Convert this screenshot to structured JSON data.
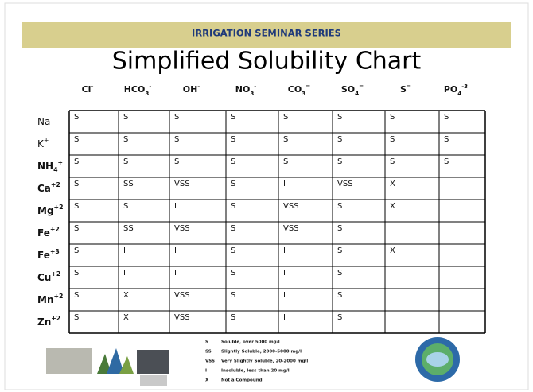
{
  "header": {
    "series": "IRRIGATION SEMINAR SERIES",
    "title": "Simplified Solubility Chart"
  },
  "table": {
    "columns": [
      [
        {
          "t": "Cl"
        },
        {
          "t": "-",
          "sup": true
        }
      ],
      [
        {
          "t": "HCO"
        },
        {
          "t": "3",
          "sub": true
        },
        {
          "t": "-",
          "sup": true
        }
      ],
      [
        {
          "t": "OH"
        },
        {
          "t": "-",
          "sup": true
        }
      ],
      [
        {
          "t": "NO"
        },
        {
          "t": "3",
          "sub": true
        },
        {
          "t": "-",
          "sup": true
        }
      ],
      [
        {
          "t": "CO"
        },
        {
          "t": "3",
          "sub": true
        },
        {
          "t": "=",
          "sup": true
        }
      ],
      [
        {
          "t": "SO"
        },
        {
          "t": "4",
          "sub": true
        },
        {
          "t": "=",
          "sup": true
        }
      ],
      [
        {
          "t": "S"
        },
        {
          "t": "=",
          "sup": true
        }
      ],
      [
        {
          "t": "PO"
        },
        {
          "t": "4",
          "sub": true
        },
        {
          "t": "-3",
          "sup": true
        }
      ]
    ],
    "row_labels": [
      [
        {
          "t": "Na"
        },
        {
          "t": "+",
          "sup": true
        }
      ],
      [
        {
          "t": "K"
        },
        {
          "t": "+",
          "sup": true
        }
      ],
      [
        {
          "t": "NH"
        },
        {
          "t": "4",
          "sub": true
        },
        {
          "t": "+",
          "sup": true
        }
      ],
      [
        {
          "t": "Ca"
        },
        {
          "t": "+2",
          "sup": true
        }
      ],
      [
        {
          "t": "Mg"
        },
        {
          "t": "+2",
          "sup": true
        }
      ],
      [
        {
          "t": "Fe"
        },
        {
          "t": "+2",
          "sup": true
        }
      ],
      [
        {
          "t": "Fe"
        },
        {
          "t": "+3",
          "sup": true
        }
      ],
      [
        {
          "t": "Cu"
        },
        {
          "t": "+2",
          "sup": true
        }
      ],
      [
        {
          "t": "Mn"
        },
        {
          "t": "+2",
          "sup": true
        }
      ],
      [
        {
          "t": "Zn"
        },
        {
          "t": "+2",
          "sup": true
        }
      ]
    ],
    "rows": [
      [
        "S",
        "S",
        "S",
        "S",
        "S",
        "S",
        "S",
        "S"
      ],
      [
        "S",
        "S",
        "S",
        "S",
        "S",
        "S",
        "S",
        "S"
      ],
      [
        "S",
        "S",
        "S",
        "S",
        "S",
        "S",
        "S",
        "S"
      ],
      [
        "S",
        "SS",
        "VSS",
        "S",
        "I",
        "VSS",
        "X",
        "I"
      ],
      [
        "S",
        "S",
        "I",
        "S",
        "VSS",
        "S",
        "X",
        "I"
      ],
      [
        "S",
        "SS",
        "VSS",
        "S",
        "VSS",
        "S",
        "I",
        "I"
      ],
      [
        "S",
        "I",
        "I",
        "S",
        "I",
        "S",
        "X",
        "I"
      ],
      [
        "S",
        "I",
        "I",
        "S",
        "I",
        "S",
        "I",
        "I"
      ],
      [
        "S",
        "X",
        "VSS",
        "S",
        "I",
        "S",
        "I",
        "I"
      ],
      [
        "S",
        "X",
        "VSS",
        "S",
        "I",
        "S",
        "I",
        "I"
      ]
    ]
  },
  "legend": [
    {
      "code": "S",
      "text": "Soluble, over 5000 mg/l"
    },
    {
      "code": "SS",
      "text": "Slightly Soluble, 2000-5000 mg/l"
    },
    {
      "code": "VSS",
      "text": "Very Slightly Soluble, 20-2000 mg/l"
    },
    {
      "code": "I",
      "text": "Insoluble, less than 20 mg/l"
    },
    {
      "code": "X",
      "text": "Not a Compound"
    }
  ]
}
